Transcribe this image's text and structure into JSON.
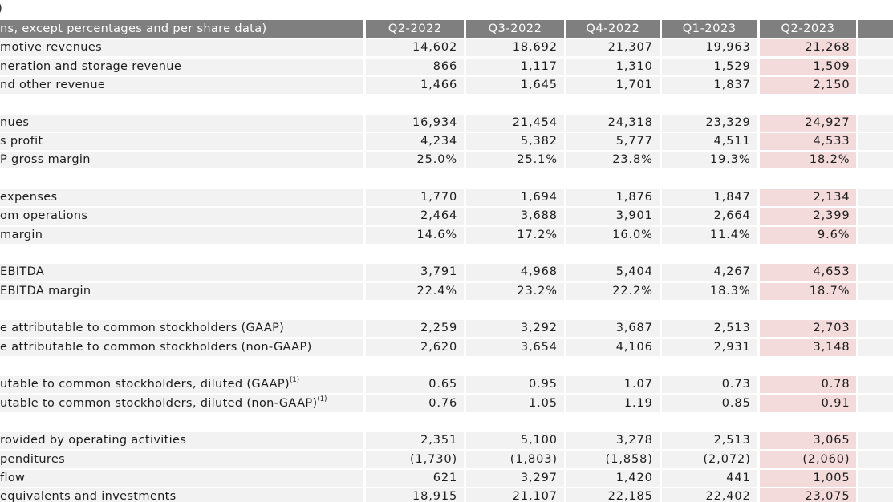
{
  "page": {
    "title_fragment": ")"
  },
  "colors": {
    "header_bg": "#7f7f7f",
    "header_text": "#ffffff",
    "row_bg": "#f2f2f2",
    "highlight_bg": "#f2dbda",
    "text": "#1c1c1c"
  },
  "table": {
    "header": {
      "label": "ns, except percentages and per share data)",
      "quarters": [
        "Q2-2022",
        "Q3-2022",
        "Q4-2022",
        "Q1-2023",
        "Q2-2023"
      ]
    },
    "highlighted_quarter": "Q2-2023",
    "rows": [
      {
        "label": "motive revenues",
        "values": [
          "14,602",
          "18,692",
          "21,307",
          "19,963",
          "21,268"
        ]
      },
      {
        "label": "neration and storage revenue",
        "values": [
          "866",
          "1,117",
          "1,310",
          "1,529",
          "1,509"
        ]
      },
      {
        "label": "nd other revenue",
        "values": [
          "1,466",
          "1,645",
          "1,701",
          "1,837",
          "2,150"
        ]
      },
      {
        "gap": true
      },
      {
        "label": "nues",
        "values": [
          "16,934",
          "21,454",
          "24,318",
          "23,329",
          "24,927"
        ]
      },
      {
        "label": "s profit",
        "values": [
          "4,234",
          "5,382",
          "5,777",
          "4,511",
          "4,533"
        ]
      },
      {
        "label": "P gross margin",
        "values": [
          "25.0%",
          "25.1%",
          "23.8%",
          "19.3%",
          "18.2%"
        ]
      },
      {
        "gap": true
      },
      {
        "label": "expenses",
        "values": [
          "1,770",
          "1,694",
          "1,876",
          "1,847",
          "2,134"
        ]
      },
      {
        "label": "om operations",
        "values": [
          "2,464",
          "3,688",
          "3,901",
          "2,664",
          "2,399"
        ]
      },
      {
        "label": "margin",
        "values": [
          "14.6%",
          "17.2%",
          "16.0%",
          "11.4%",
          "9.6%"
        ]
      },
      {
        "gap": true
      },
      {
        "label": "EBITDA",
        "values": [
          "3,791",
          "4,968",
          "5,404",
          "4,267",
          "4,653"
        ]
      },
      {
        "label": "EBITDA margin",
        "values": [
          "22.4%",
          "23.2%",
          "22.2%",
          "18.3%",
          "18.7%"
        ]
      },
      {
        "gap": true
      },
      {
        "label": "e attributable to common stockholders (GAAP)",
        "values": [
          "2,259",
          "3,292",
          "3,687",
          "2,513",
          "2,703"
        ]
      },
      {
        "label": "e attributable to common stockholders (non-GAAP)",
        "values": [
          "2,620",
          "3,654",
          "4,106",
          "2,931",
          "3,148"
        ]
      },
      {
        "gap": true
      },
      {
        "label": "utable to common stockholders, diluted (GAAP)",
        "sup": "(1)",
        "values": [
          "0.65",
          "0.95",
          "1.07",
          "0.73",
          "0.78"
        ]
      },
      {
        "label": "utable to common stockholders, diluted (non-GAAP)",
        "sup": "(1)",
        "values": [
          "0.76",
          "1.05",
          "1.19",
          "0.85",
          "0.91"
        ]
      },
      {
        "gap": true
      },
      {
        "label": "rovided by operating activities",
        "values": [
          "2,351",
          "5,100",
          "3,278",
          "2,513",
          "3,065"
        ]
      },
      {
        "label": "penditures",
        "values": [
          "(1,730)",
          "(1,803)",
          "(1,858)",
          "(2,072)",
          "(2,060)"
        ]
      },
      {
        "label": "flow",
        "values": [
          "621",
          "3,297",
          "1,420",
          "441",
          "1,005"
        ]
      },
      {
        "label": "equivalents and investments",
        "values": [
          "18,915",
          "21,107",
          "22,185",
          "22,402",
          "23,075"
        ]
      }
    ]
  }
}
